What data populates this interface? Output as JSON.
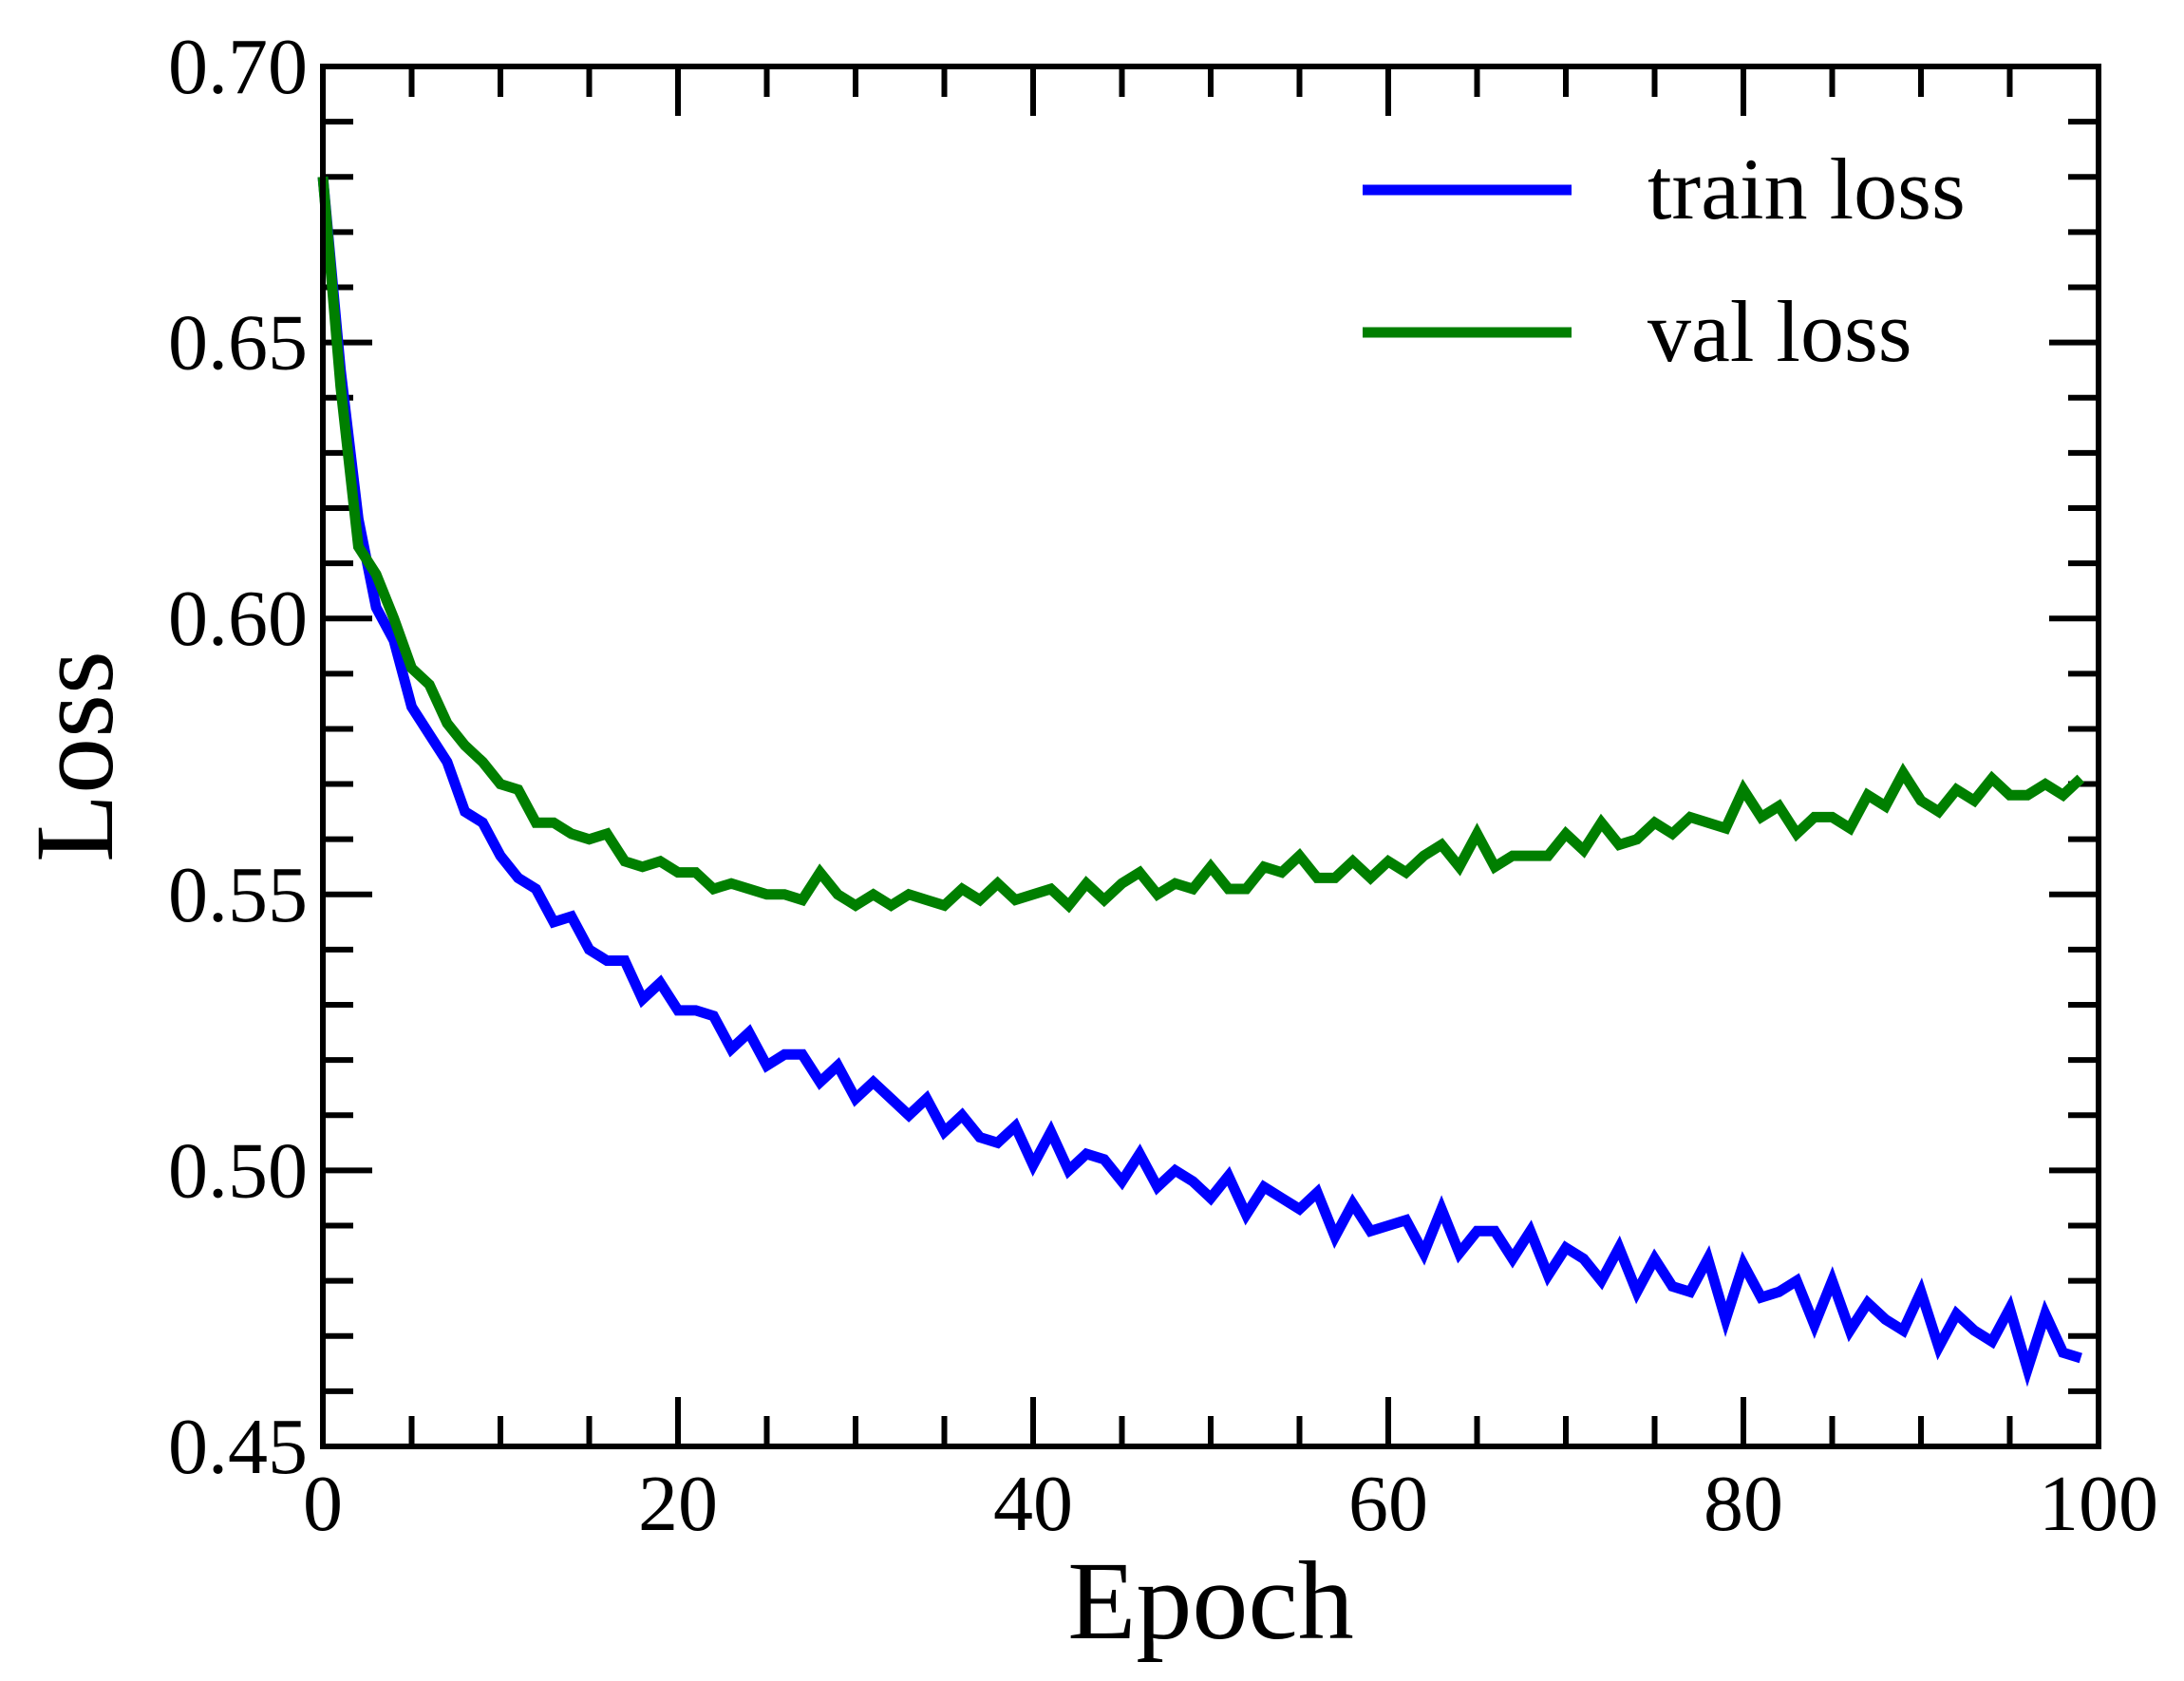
{
  "chart_data": {
    "type": "line",
    "title": "",
    "xlabel": "Epoch",
    "ylabel": "Loss",
    "xlim": [
      0,
      100
    ],
    "ylim": [
      0.45,
      0.7
    ],
    "x_ticks": [
      0,
      20,
      40,
      60,
      80,
      100
    ],
    "x_tick_labels": [
      "0",
      "20",
      "40",
      "60",
      "80",
      "100"
    ],
    "y_ticks": [
      0.45,
      0.5,
      0.55,
      0.6,
      0.65,
      0.7
    ],
    "y_tick_labels": [
      "0.45",
      "0.50",
      "0.55",
      "0.60",
      "0.65",
      "0.70"
    ],
    "grid": false,
    "legend": {
      "position": "top-right",
      "show": true
    },
    "series": [
      {
        "name": "train loss",
        "color": "#0000ff",
        "x": [
          0,
          1,
          2,
          3,
          4,
          5,
          6,
          7,
          8,
          9,
          10,
          11,
          12,
          13,
          14,
          15,
          16,
          17,
          18,
          19,
          20,
          21,
          22,
          23,
          24,
          25,
          26,
          27,
          28,
          29,
          30,
          31,
          32,
          33,
          34,
          35,
          36,
          37,
          38,
          39,
          40,
          41,
          42,
          43,
          44,
          45,
          46,
          47,
          48,
          49,
          50,
          51,
          52,
          53,
          54,
          55,
          56,
          57,
          58,
          59,
          60,
          61,
          62,
          63,
          64,
          65,
          66,
          67,
          68,
          69,
          70,
          71,
          72,
          73,
          74,
          75,
          76,
          77,
          78,
          79,
          80,
          81,
          82,
          83,
          84,
          85,
          86,
          87,
          88,
          89,
          90,
          91,
          92,
          93,
          94,
          95,
          96,
          97,
          98,
          99
        ],
        "y": [
          0.68,
          0.645,
          0.618,
          0.602,
          0.596,
          0.584,
          0.579,
          0.574,
          0.565,
          0.563,
          0.557,
          0.553,
          0.551,
          0.545,
          0.546,
          0.54,
          0.538,
          0.538,
          0.531,
          0.534,
          0.529,
          0.529,
          0.528,
          0.522,
          0.525,
          0.519,
          0.521,
          0.521,
          0.516,
          0.519,
          0.513,
          0.516,
          0.513,
          0.51,
          0.513,
          0.507,
          0.51,
          0.506,
          0.505,
          0.508,
          0.501,
          0.507,
          0.5,
          0.503,
          0.502,
          0.498,
          0.503,
          0.497,
          0.5,
          0.498,
          0.495,
          0.499,
          0.492,
          0.497,
          0.495,
          0.493,
          0.496,
          0.488,
          0.494,
          0.489,
          0.49,
          0.491,
          0.485,
          0.493,
          0.485,
          0.489,
          0.489,
          0.484,
          0.489,
          0.481,
          0.486,
          0.484,
          0.48,
          0.486,
          0.478,
          0.484,
          0.479,
          0.478,
          0.484,
          0.473,
          0.483,
          0.477,
          0.478,
          0.48,
          0.472,
          0.48,
          0.471,
          0.476,
          0.473,
          0.471,
          0.478,
          0.468,
          0.474,
          0.471,
          0.469,
          0.475,
          0.464,
          0.474,
          0.467,
          0.466
        ]
      },
      {
        "name": "val loss",
        "color": "#007f00",
        "x": [
          0,
          1,
          2,
          3,
          4,
          5,
          6,
          7,
          8,
          9,
          10,
          11,
          12,
          13,
          14,
          15,
          16,
          17,
          18,
          19,
          20,
          21,
          22,
          23,
          24,
          25,
          26,
          27,
          28,
          29,
          30,
          31,
          32,
          33,
          34,
          35,
          36,
          37,
          38,
          39,
          40,
          41,
          42,
          43,
          44,
          45,
          46,
          47,
          48,
          49,
          50,
          51,
          52,
          53,
          54,
          55,
          56,
          57,
          58,
          59,
          60,
          61,
          62,
          63,
          64,
          65,
          66,
          67,
          68,
          69,
          70,
          71,
          72,
          73,
          74,
          75,
          76,
          77,
          78,
          79,
          80,
          81,
          82,
          83,
          84,
          85,
          86,
          87,
          88,
          89,
          90,
          91,
          92,
          93,
          94,
          95,
          96,
          97,
          98,
          99
        ],
        "y": [
          0.68,
          0.642,
          0.613,
          0.608,
          0.6,
          0.591,
          0.588,
          0.581,
          0.577,
          0.574,
          0.57,
          0.569,
          0.563,
          0.563,
          0.561,
          0.56,
          0.561,
          0.556,
          0.555,
          0.556,
          0.554,
          0.554,
          0.551,
          0.552,
          0.551,
          0.55,
          0.55,
          0.549,
          0.554,
          0.55,
          0.548,
          0.55,
          0.548,
          0.55,
          0.549,
          0.548,
          0.551,
          0.549,
          0.552,
          0.549,
          0.55,
          0.551,
          0.548,
          0.552,
          0.549,
          0.552,
          0.554,
          0.55,
          0.552,
          0.551,
          0.555,
          0.551,
          0.551,
          0.555,
          0.554,
          0.557,
          0.553,
          0.553,
          0.556,
          0.553,
          0.556,
          0.554,
          0.557,
          0.559,
          0.555,
          0.561,
          0.555,
          0.557,
          0.557,
          0.557,
          0.561,
          0.558,
          0.563,
          0.559,
          0.56,
          0.563,
          0.561,
          0.564,
          0.563,
          0.562,
          0.569,
          0.564,
          0.566,
          0.561,
          0.564,
          0.564,
          0.562,
          0.568,
          0.566,
          0.572,
          0.567,
          0.565,
          0.569,
          0.567,
          0.571,
          0.568,
          0.568,
          0.57,
          0.568,
          0.571
        ]
      }
    ]
  }
}
